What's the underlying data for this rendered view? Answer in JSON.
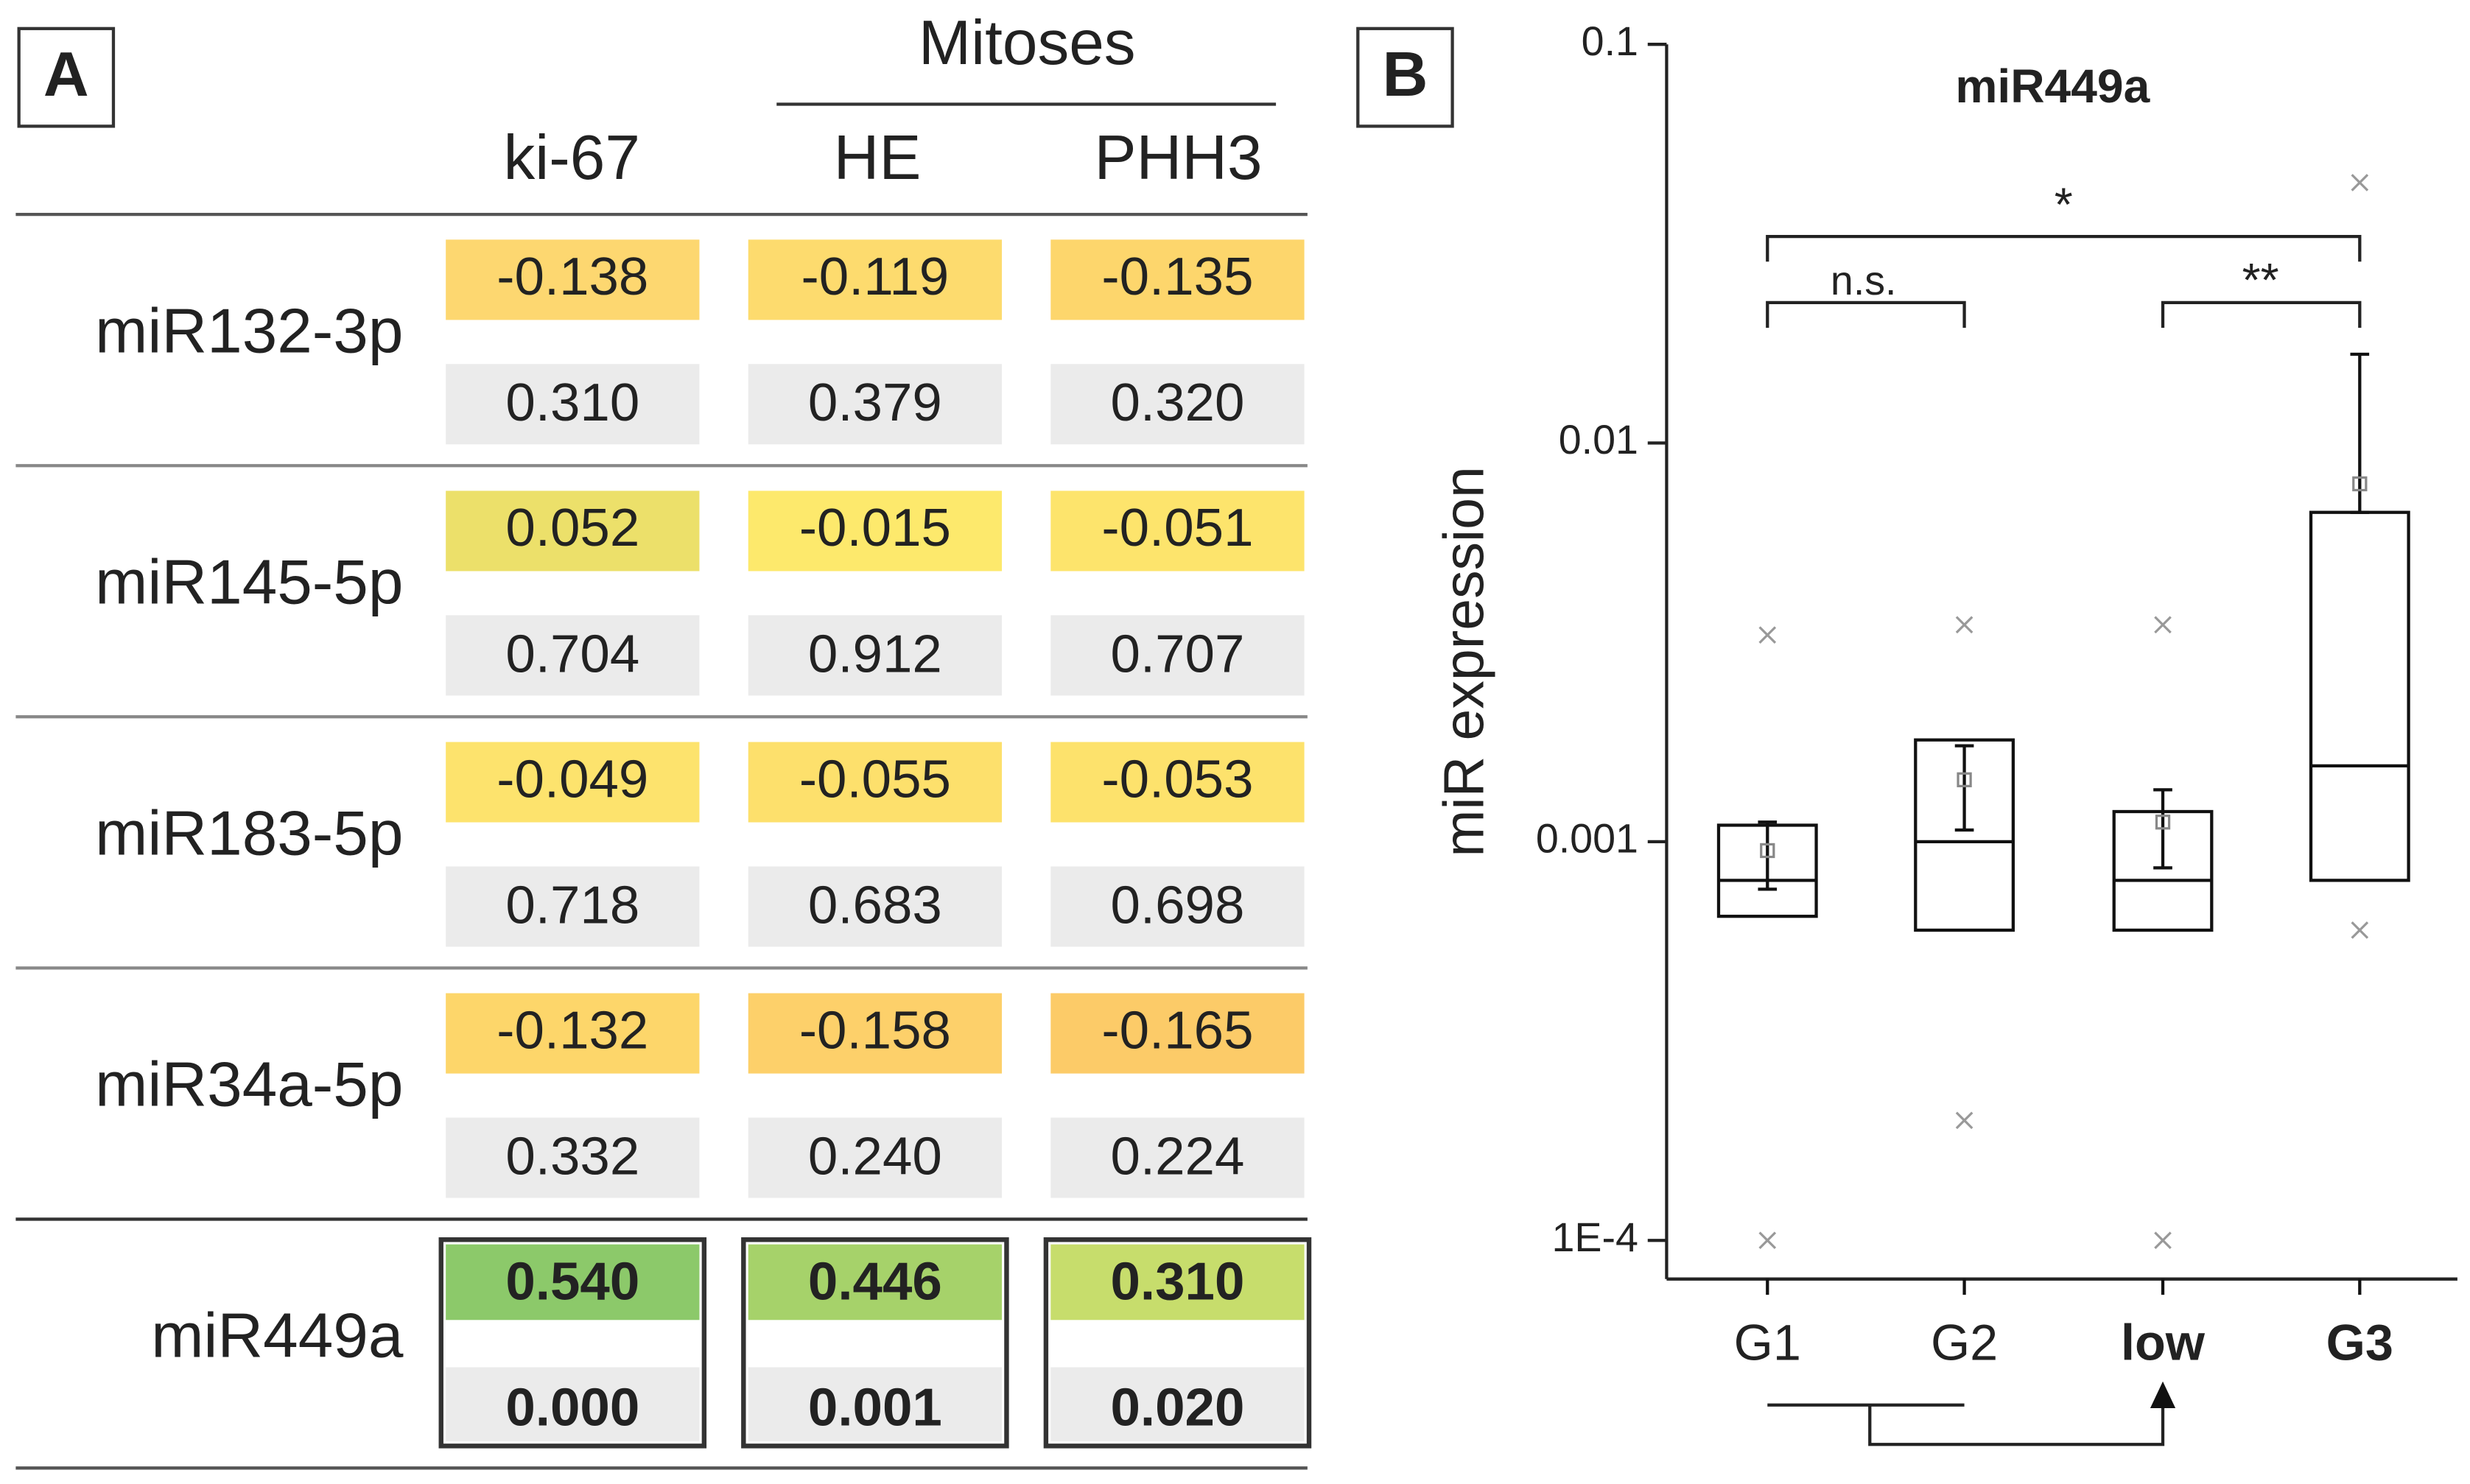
{
  "panel_a": {
    "panel_label": "A",
    "group_header": "Mitoses",
    "columns": [
      "ki-67",
      "HE",
      "PHH3"
    ],
    "rows": [
      {
        "name": "miR132-3p",
        "r": [
          "-0.138",
          "-0.119",
          "-0.135"
        ],
        "p": [
          "0.310",
          "0.379",
          "0.320"
        ],
        "r_colors": [
          "#fdd770",
          "#fddb6e",
          "#fdd66c"
        ]
      },
      {
        "name": "miR145-5p",
        "r": [
          "0.052",
          "-0.015",
          "-0.051"
        ],
        "p": [
          "0.704",
          "0.912",
          "0.707"
        ],
        "r_colors": [
          "#ece06a",
          "#fde96c",
          "#fde46c"
        ]
      },
      {
        "name": "miR183-5p",
        "r": [
          "-0.049",
          "-0.055",
          "-0.053"
        ],
        "p": [
          "0.718",
          "0.683",
          "0.698"
        ],
        "r_colors": [
          "#fde36d",
          "#fde06c",
          "#fde26c"
        ]
      },
      {
        "name": "miR34a-5p",
        "r": [
          "-0.132",
          "-0.158",
          "-0.165"
        ],
        "p": [
          "0.332",
          "0.240",
          "0.224"
        ],
        "r_colors": [
          "#fdd66a",
          "#fdd06a",
          "#fccb68"
        ]
      },
      {
        "name": "miR449a",
        "r": [
          "0.540",
          "0.446",
          "0.310"
        ],
        "p": [
          "0.000",
          "0.001",
          "0.020"
        ],
        "r_colors": [
          "#8cc96a",
          "#a6d26a",
          "#c7dd6c"
        ],
        "bold": true
      }
    ],
    "p_color": "#ebebeb"
  },
  "chart_data": {
    "type": "box",
    "panel_label": "B",
    "title": "miR449a",
    "y_label": "miR expression",
    "categories": [
      "G1",
      "G2",
      "low",
      "G3"
    ],
    "bold_categories": [
      false,
      false,
      true,
      true
    ],
    "log_y": true,
    "ylim": [
      8e-05,
      0.1
    ],
    "yticks": [
      0.1,
      0.01,
      0.001,
      {
        "value": 0.0001,
        "label": "1E-4"
      }
    ],
    "q1": [
      0.00065,
      0.0006,
      0.0006,
      0.0008
    ],
    "median": [
      0.0008,
      0.001,
      0.0008,
      0.00155
    ],
    "q3": [
      0.0011,
      0.0018,
      0.00119,
      0.0067
    ],
    "whisker_low": [
      0.00076,
      0.00107,
      0.00086,
      0.0067
    ],
    "whisker_high": [
      0.00112,
      0.00174,
      0.00135,
      0.0167
    ],
    "mean": [
      0.00095,
      0.00143,
      0.00112,
      0.0079
    ],
    "min": [
      0.0001,
      0.0002,
      0.0001,
      0.0006
    ],
    "max": [
      0.0033,
      0.0035,
      0.0035,
      0.045
    ],
    "annotations": [
      "*",
      "n.s.",
      "**"
    ]
  }
}
